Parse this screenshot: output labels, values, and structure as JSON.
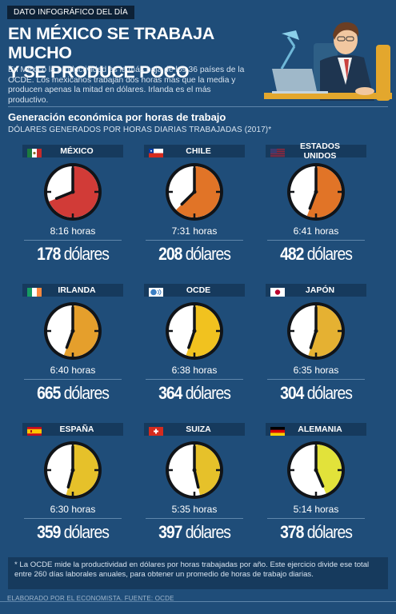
{
  "header": {
    "tag": "DATO INFOGRÁFICO DEL DÍA",
    "headline_line1": "EN MÉXICO SE TRABAJA MUCHO",
    "headline_line2": "Y SE PRODUCE POCO",
    "intro": "En México la productividad es la más baja de los 36 países de la OCDE. Los mexicanos trabajan dos horas más que la media y producen apenas la mitad en dólares. Irlanda es el más productivo."
  },
  "colors": {
    "background": "#1f4d79",
    "panel": "#163a5d",
    "clock_red": "#d13b37",
    "clock_orange": "#e17427",
    "clock_amber": "#e59f2c",
    "clock_yellow": "#f1c21f",
    "clock_gold": "#e6c12a",
    "clock_lime": "#e2e23a"
  },
  "chart_data": {
    "type": "table",
    "title": "Generación económica por horas de trabajo",
    "subtitle": "DÓLARES GENERADOS POR HORAS DIARIAS TRABAJADAS (2017)*",
    "value_unit": "dólares",
    "hours_unit": "horas",
    "rows": [
      {
        "country": "MÉXICO",
        "flag": "mexico-flag-icon",
        "hours": "8:16",
        "hours_decimal": 8.27,
        "dollars": 178,
        "color": "#d13b37"
      },
      {
        "country": "CHILE",
        "flag": "chile-flag-icon",
        "hours": "7:31",
        "hours_decimal": 7.52,
        "dollars": 208,
        "color": "#e17427"
      },
      {
        "country": "ESTADOS UNIDOS",
        "flag": "usa-flag-icon",
        "hours": "6:41",
        "hours_decimal": 6.68,
        "dollars": 482,
        "color": "#e17427"
      },
      {
        "country": "IRLANDA",
        "flag": "ireland-flag-icon",
        "hours": "6:40",
        "hours_decimal": 6.67,
        "dollars": 665,
        "color": "#e59f2c"
      },
      {
        "country": "OCDE",
        "flag": "oecd-logo-icon",
        "hours": "6:38",
        "hours_decimal": 6.63,
        "dollars": 364,
        "color": "#f1c21f"
      },
      {
        "country": "JAPÓN",
        "flag": "japan-flag-icon",
        "hours": "6:35",
        "hours_decimal": 6.58,
        "dollars": 304,
        "color": "#e5b132"
      },
      {
        "country": "ESPAÑA",
        "flag": "spain-flag-icon",
        "hours": "6:30",
        "hours_decimal": 6.5,
        "dollars": 359,
        "color": "#e6c12a"
      },
      {
        "country": "SUIZA",
        "flag": "switzerland-flag-icon",
        "hours": "5:35",
        "hours_decimal": 5.58,
        "dollars": 397,
        "color": "#e6c12a"
      },
      {
        "country": "ALEMANIA",
        "flag": "germany-flag-icon",
        "hours": "5:14",
        "hours_decimal": 5.23,
        "dollars": 378,
        "color": "#e2e23a"
      }
    ]
  },
  "footnote": "* La OCDE mide la productividad en dólares por horas trabajadas por año. Este ejercicio divide ese total entre 260 días laborales anuales, para obtener un promedio de horas de trabajo diarias.",
  "credit": "ELABORADO POR EL ECONOMISTA. FUENTE: OCDE"
}
